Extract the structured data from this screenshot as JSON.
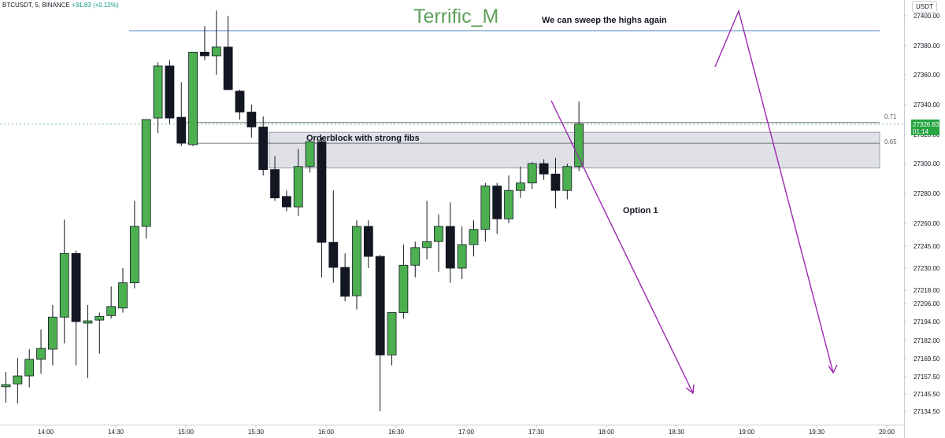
{
  "header": {
    "symbol": "BTCUSDT, 5, BINANCE",
    "change": "+31.83 (+0.12%)"
  },
  "annotations": {
    "watermark": "Terrific_M",
    "headline": "We can sweep the highs again",
    "zone_label": "Orderblock with strong fibs",
    "option_label": "Option 1",
    "fib_071": "0.71",
    "fib_065": "0.65"
  },
  "price_scale": {
    "currency": "USDT",
    "last_price": "27326.83",
    "countdown": "01:14"
  },
  "colors": {
    "bull": "#4caf50",
    "bear": "#131722",
    "arrow": "#9c27b0",
    "zone": "#d1d4dc",
    "high_line": "#4a7fc1"
  },
  "chart_data": {
    "type": "candlestick",
    "symbol": "BTCUSDT",
    "interval": "5",
    "exchange": "BINANCE",
    "y_ticks": [
      "27400.00",
      "27380.00",
      "27360.00",
      "27340.00",
      "27320.00",
      "27300.00",
      "27280.00",
      "27260.00",
      "27245.00",
      "27230.00",
      "27218.00",
      "27206.00",
      "27194.00",
      "27182.00",
      "27169.50",
      "27157.50",
      "27145.50",
      "27134.50"
    ],
    "x_ticks": [
      "14:00",
      "14:30",
      "15:00",
      "15:30",
      "16:00",
      "16:30",
      "17:00",
      "17:30",
      "18:00",
      "18:30",
      "19:00",
      "19:30",
      "20:00"
    ],
    "candles": [
      {
        "o": 27150.5,
        "h": 27160.5,
        "l": 27140.0,
        "c": 27152.0
      },
      {
        "o": 27152.5,
        "h": 27170.0,
        "l": 27139.5,
        "c": 27158.0
      },
      {
        "o": 27158.0,
        "h": 27176.0,
        "l": 27150.0,
        "c": 27169.0
      },
      {
        "o": 27169.0,
        "h": 27189.0,
        "l": 27159.5,
        "c": 27176.5
      },
      {
        "o": 27176.0,
        "h": 27205.0,
        "l": 27165.0,
        "c": 27197.0
      },
      {
        "o": 27197.0,
        "h": 27262.5,
        "l": 27180.0,
        "c": 27240.0
      },
      {
        "o": 27240.0,
        "h": 27242.0,
        "l": 27165.0,
        "c": 27194.0
      },
      {
        "o": 27193.0,
        "h": 27205.0,
        "l": 27156.5,
        "c": 27194.5
      },
      {
        "o": 27195.0,
        "h": 27200.0,
        "l": 27173.0,
        "c": 27197.5
      },
      {
        "o": 27198.0,
        "h": 27220.0,
        "l": 27196.0,
        "c": 27204.0
      },
      {
        "o": 27203.0,
        "h": 27230.0,
        "l": 27200.0,
        "c": 27222.0
      },
      {
        "o": 27222.0,
        "h": 27275.0,
        "l": 27219.0,
        "c": 27258.0
      },
      {
        "o": 27258.0,
        "h": 27330.0,
        "l": 27250.0,
        "c": 27330.0
      },
      {
        "o": 27331.0,
        "h": 27368.5,
        "l": 27321.0,
        "c": 27366.0
      },
      {
        "o": 27366.0,
        "h": 27370.0,
        "l": 27327.0,
        "c": 27331.0
      },
      {
        "o": 27331.5,
        "h": 27355.0,
        "l": 27312.0,
        "c": 27314.0
      },
      {
        "o": 27313.0,
        "h": 27375.0,
        "l": 27312.0,
        "c": 27375.5
      },
      {
        "o": 27375.5,
        "h": 27393.0,
        "l": 27370.0,
        "c": 27373.0
      },
      {
        "o": 27373.0,
        "h": 27403.5,
        "l": 27360.0,
        "c": 27379.0
      },
      {
        "o": 27379.0,
        "h": 27400.0,
        "l": 27350.0,
        "c": 27350.0
      },
      {
        "o": 27349.0,
        "h": 27350.0,
        "l": 27330.0,
        "c": 27335.0
      },
      {
        "o": 27335.0,
        "h": 27340.0,
        "l": 27318.0,
        "c": 27325.0
      },
      {
        "o": 27325.0,
        "h": 27332.0,
        "l": 27292.0,
        "c": 27296.0
      },
      {
        "o": 27296.0,
        "h": 27305.0,
        "l": 27275.0,
        "c": 27277.0
      },
      {
        "o": 27278.0,
        "h": 27282.0,
        "l": 27268.0,
        "c": 27271.0
      },
      {
        "o": 27271.0,
        "h": 27310.0,
        "l": 27265.0,
        "c": 27298.0
      },
      {
        "o": 27298.0,
        "h": 27316.0,
        "l": 27294.0,
        "c": 27315.0
      },
      {
        "o": 27315.0,
        "h": 27318.0,
        "l": 27225.0,
        "c": 27247.5
      },
      {
        "o": 27247.5,
        "h": 27282.0,
        "l": 27222.0,
        "c": 27230.5
      },
      {
        "o": 27230.5,
        "h": 27240.0,
        "l": 27208.0,
        "c": 27212.5
      },
      {
        "o": 27213.0,
        "h": 27262.0,
        "l": 27202.0,
        "c": 27258.0
      },
      {
        "o": 27258.0,
        "h": 27262.0,
        "l": 27230.0,
        "c": 27238.0
      },
      {
        "o": 27238.0,
        "h": 27239.0,
        "l": 27134.5,
        "c": 27172.0
      },
      {
        "o": 27172.0,
        "h": 27200.0,
        "l": 27165.0,
        "c": 27200.0
      },
      {
        "o": 27200.0,
        "h": 27246.0,
        "l": 27196.0,
        "c": 27232.0
      },
      {
        "o": 27232.0,
        "h": 27248.0,
        "l": 27225.0,
        "c": 27244.0
      },
      {
        "o": 27244.0,
        "h": 27275.0,
        "l": 27236.0,
        "c": 27248.0
      },
      {
        "o": 27248.0,
        "h": 27266.0,
        "l": 27228.0,
        "c": 27258.0
      },
      {
        "o": 27258.0,
        "h": 27274.0,
        "l": 27222.0,
        "c": 27230.0
      },
      {
        "o": 27230.0,
        "h": 27258.0,
        "l": 27224.0,
        "c": 27246.0
      },
      {
        "o": 27246.0,
        "h": 27262.0,
        "l": 27238.0,
        "c": 27256.0
      },
      {
        "o": 27256.0,
        "h": 27287.0,
        "l": 27248.0,
        "c": 27285.0
      },
      {
        "o": 27285.0,
        "h": 27287.0,
        "l": 27253.0,
        "c": 27263.0
      },
      {
        "o": 27263.0,
        "h": 27292.0,
        "l": 27260.0,
        "c": 27282.0
      },
      {
        "o": 27282.0,
        "h": 27298.0,
        "l": 27277.0,
        "c": 27287.0
      },
      {
        "o": 27287.0,
        "h": 27301.0,
        "l": 27283.0,
        "c": 27300.0
      },
      {
        "o": 27300.0,
        "h": 27303.0,
        "l": 27289.0,
        "c": 27293.0
      },
      {
        "o": 27293.0,
        "h": 27304.0,
        "l": 27270.0,
        "c": 27282.0
      },
      {
        "o": 27282.0,
        "h": 27300.0,
        "l": 27276.0,
        "c": 27298.0
      },
      {
        "o": 27298.0,
        "h": 27342.0,
        "l": 27295.0,
        "c": 27327.0
      }
    ],
    "levels": [
      {
        "name": "recent-high",
        "value": 27390.0
      },
      {
        "name": "fib-0.71",
        "value": 27328.0
      },
      {
        "name": "fib-0.65",
        "value": 27314.0
      }
    ],
    "zone": {
      "top": 27321.5,
      "bottom": 27297.0,
      "label": "Orderblock with strong fibs"
    },
    "legend": "none",
    "grid": false
  }
}
